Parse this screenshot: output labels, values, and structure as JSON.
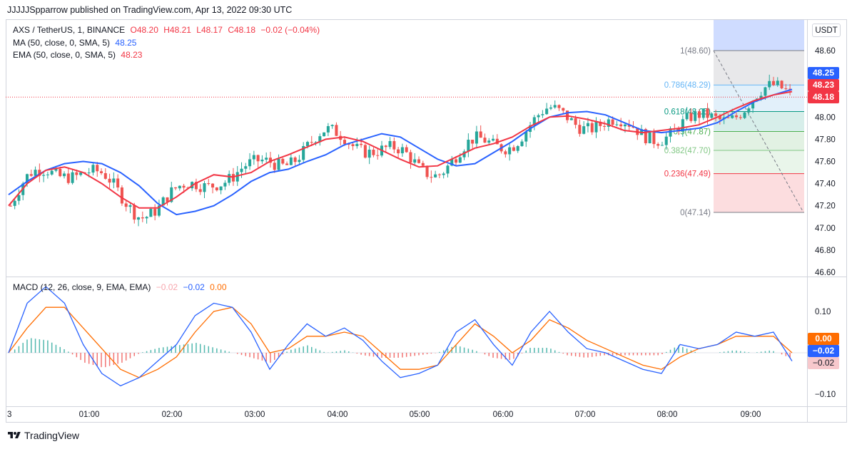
{
  "header": {
    "published": "JJJJJSpparrow published on TradingView.com, Apr 13, 2022 09:30 UTC"
  },
  "legend": {
    "symbol": "AXS / TetherUS, 1, BINANCE",
    "o": "O48.20",
    "h": "H48.21",
    "l": "L48.17",
    "c": "C48.18",
    "chg": "−0.02 (−0.04%)",
    "ma_label": "MA (50, close, 0, SMA, 5)",
    "ma_value": "48.25",
    "ema_label": "EMA (50, close, 0, SMA, 5)",
    "ema_value": "48.23"
  },
  "macd_legend": {
    "label": "MACD (12, 26, close, 9, EMA, EMA)",
    "hist": "−0.02",
    "macd": "−0.02",
    "signal": "0.00"
  },
  "currency": "USDT",
  "badges": {
    "ma": {
      "text": "48.25",
      "color": "#2962ff"
    },
    "ema": {
      "text": "48.23",
      "color": "#f23645"
    },
    "last": {
      "text": "48.18",
      "color": "#f23645"
    },
    "signal": {
      "text": "0.00",
      "color": "#ff6d00"
    },
    "macd": {
      "text": "−0.02",
      "color": "#2962ff"
    },
    "hist": {
      "text": "−0.02",
      "color": "#f7c8cc"
    }
  },
  "footer": {
    "brand": "TradingView"
  },
  "colors": {
    "up": "#26a69a",
    "down": "#ef5350",
    "ma": "#2962ff",
    "ema": "#f23645",
    "macd_line": "#2962ff",
    "signal_line": "#ff6d00"
  },
  "chart_data": [
    {
      "type": "candlestick",
      "x_ticks": [
        "3",
        "01:00",
        "02:00",
        "03:00",
        "04:00",
        "05:00",
        "06:00",
        "07:00",
        "08:00",
        "09:00"
      ],
      "y_ticks": [
        "48.60",
        "48.40",
        "48.20",
        "48.00",
        "47.80",
        "47.60",
        "47.40",
        "47.20",
        "47.00",
        "46.80",
        "46.60"
      ],
      "ylim": [
        46.6,
        48.8
      ],
      "last_price": 48.18,
      "series": [
        {
          "name": "MA (50, close, 0, SMA, 5)",
          "values": [
            47.3,
            47.42,
            47.52,
            47.58,
            47.6,
            47.58,
            47.5,
            47.38,
            47.22,
            47.12,
            47.15,
            47.2,
            47.3,
            47.42,
            47.5,
            47.53,
            47.6,
            47.66,
            47.75,
            47.8,
            47.85,
            47.82,
            47.72,
            47.62,
            47.56,
            47.58,
            47.68,
            47.78,
            47.9,
            48.0,
            48.04,
            48.05,
            48.02,
            47.95,
            47.88,
            47.86,
            47.88,
            47.9,
            47.95,
            48.05,
            48.14,
            48.2,
            48.25
          ]
        },
        {
          "name": "EMA (50, close, 0, SMA, 5)",
          "values": [
            47.2,
            47.4,
            47.52,
            47.55,
            47.5,
            47.4,
            47.28,
            47.18,
            47.18,
            47.28,
            47.4,
            47.48,
            47.46,
            47.5,
            47.6,
            47.66,
            47.73,
            47.8,
            47.82,
            47.78,
            47.7,
            47.62,
            47.55,
            47.56,
            47.64,
            47.72,
            47.76,
            47.82,
            47.92,
            48.0,
            48.01,
            47.98,
            47.94,
            47.88,
            47.86,
            47.88,
            47.9,
            47.93,
            48.0,
            48.08,
            48.15,
            48.2,
            48.23
          ]
        }
      ],
      "fibonacci": [
        {
          "level": "1",
          "price": 48.6,
          "label": "1(48.60)",
          "color": "#787b86"
        },
        {
          "level": "0.786",
          "price": 48.29,
          "label": "0.786(48.29)",
          "color": "#64b5f6"
        },
        {
          "level": "0.618",
          "price": 48.05,
          "label": "0.618(48.05)",
          "color": "#089981"
        },
        {
          "level": "0.5",
          "price": 47.87,
          "label": "0.5(47.87)",
          "color": "#4caf50"
        },
        {
          "level": "0.382",
          "price": 47.7,
          "label": "0.382(47.70)",
          "color": "#81c784"
        },
        {
          "level": "0.236",
          "price": 47.49,
          "label": "0.236(47.49)",
          "color": "#f23645"
        },
        {
          "level": "0",
          "price": 47.14,
          "label": "0(47.14)",
          "color": "#787b86"
        }
      ]
    },
    {
      "type": "line",
      "title": "MACD (12, 26, close, 9, EMA, EMA)",
      "y_ticks": [
        "0.10",
        "-0.10"
      ],
      "ylim": [
        -0.13,
        0.19
      ],
      "series": [
        {
          "name": "MACD",
          "values": [
            0.0,
            0.12,
            0.16,
            0.12,
            0.02,
            -0.05,
            -0.08,
            -0.06,
            -0.02,
            0.02,
            0.09,
            0.12,
            0.11,
            0.05,
            -0.04,
            0.02,
            0.07,
            0.04,
            0.06,
            0.03,
            -0.02,
            -0.06,
            -0.05,
            -0.03,
            0.05,
            0.08,
            0.02,
            -0.03,
            0.05,
            0.1,
            0.05,
            0.01,
            0.0,
            -0.02,
            -0.04,
            -0.05,
            0.02,
            0.01,
            0.02,
            0.05,
            0.04,
            0.05,
            -0.02
          ]
        },
        {
          "name": "Signal",
          "values": [
            0.0,
            0.06,
            0.11,
            0.11,
            0.06,
            0.01,
            -0.04,
            -0.06,
            -0.04,
            -0.01,
            0.05,
            0.1,
            0.11,
            0.07,
            0.0,
            0.01,
            0.04,
            0.04,
            0.05,
            0.04,
            0.0,
            -0.04,
            -0.04,
            -0.03,
            0.02,
            0.07,
            0.04,
            0.0,
            0.03,
            0.08,
            0.06,
            0.03,
            0.01,
            -0.01,
            -0.03,
            -0.04,
            -0.01,
            0.01,
            0.02,
            0.04,
            0.04,
            0.04,
            0.0
          ]
        },
        {
          "name": "Histogram",
          "values": [
            0.0,
            0.06,
            0.05,
            0.01,
            -0.04,
            -0.06,
            -0.04,
            0.0,
            0.02,
            0.03,
            0.04,
            0.02,
            0.0,
            -0.02,
            -0.04,
            0.01,
            0.03,
            0.0,
            0.01,
            -0.01,
            -0.02,
            -0.02,
            -0.01,
            0.0,
            0.03,
            0.01,
            -0.02,
            -0.03,
            0.02,
            0.02,
            -0.01,
            -0.02,
            -0.01,
            -0.01,
            -0.01,
            -0.01,
            0.03,
            0.0,
            0.0,
            0.01,
            0.0,
            0.01,
            -0.02
          ]
        }
      ]
    }
  ]
}
